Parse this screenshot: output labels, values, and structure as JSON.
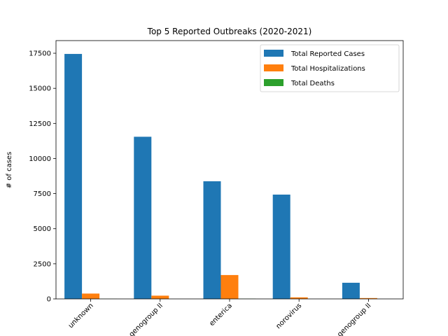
{
  "chart_data": {
    "type": "bar",
    "title": "Top 5 Reported Outbreaks (2020-2021)",
    "xlabel": "",
    "ylabel": "# of cases",
    "ylim": [
      0,
      17500
    ],
    "yticks": [
      0,
      2500,
      5000,
      7500,
      10000,
      12500,
      15000,
      17500
    ],
    "categories": [
      "unknown",
      "genogroup II",
      "enterica",
      "norovirus",
      "genogroup II"
    ],
    "series": [
      {
        "name": "Total Reported Cases",
        "color": "#1f77b4",
        "values": [
          17450,
          11550,
          8380,
          7430,
          1150
        ]
      },
      {
        "name": "Total Hospitalizations",
        "color": "#ff7f0e",
        "values": [
          380,
          230,
          1700,
          110,
          60
        ]
      },
      {
        "name": "Total Deaths",
        "color": "#2ca02c",
        "values": [
          5,
          2,
          12,
          1,
          0
        ]
      }
    ],
    "legend_position": "top-right",
    "grid": false
  }
}
